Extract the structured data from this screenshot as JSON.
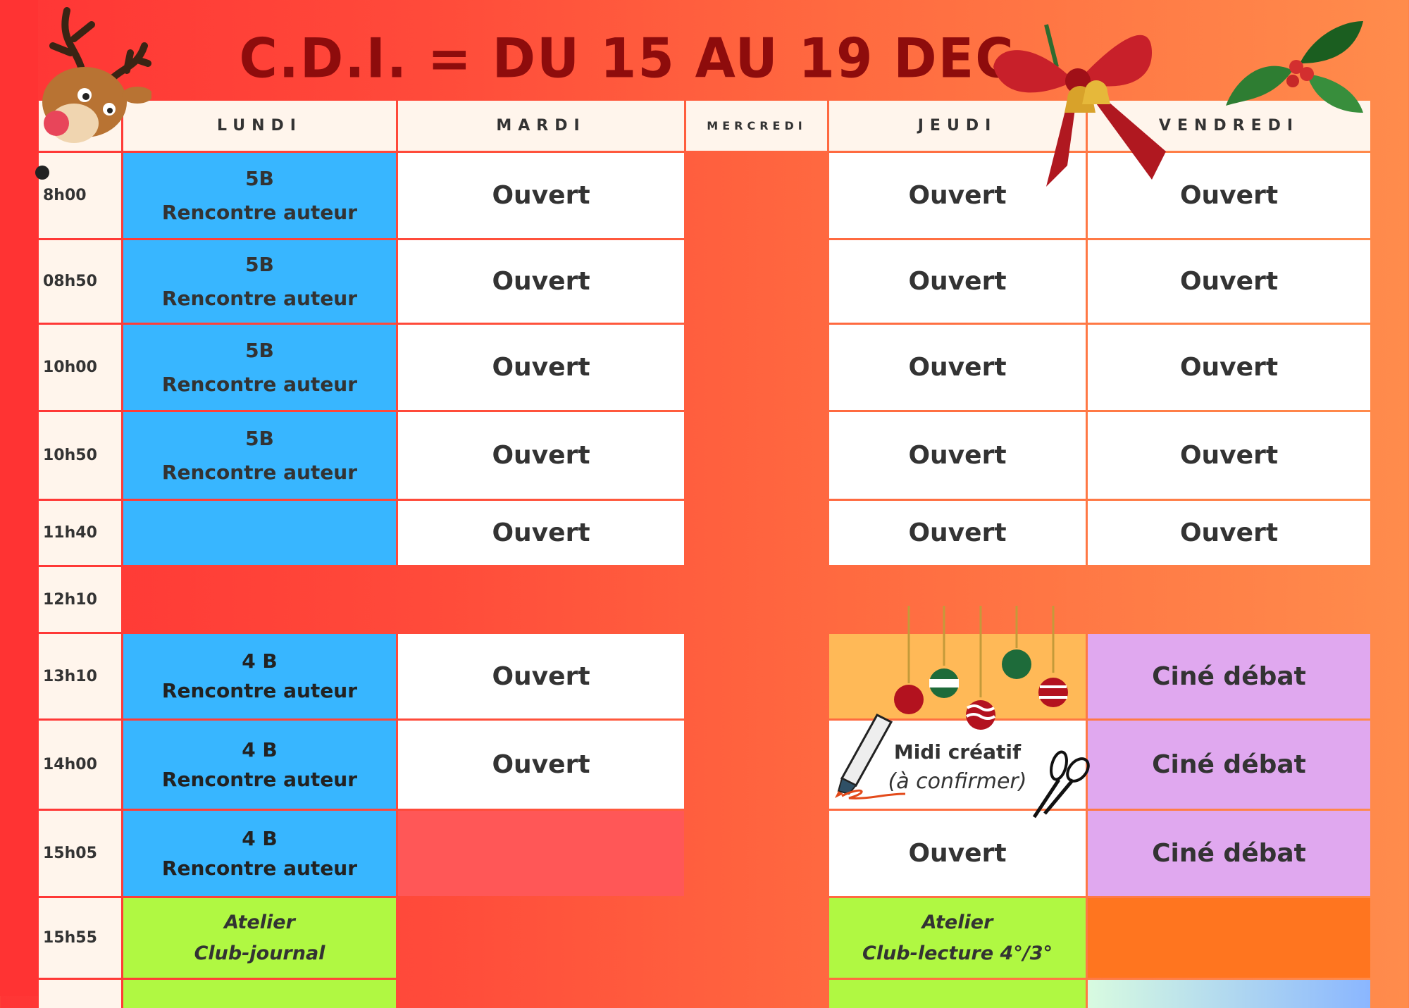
{
  "title": "C.D.I.  =  DU 15 AU 19 DEC",
  "days": [
    "LUNDI",
    "MARDI",
    "MERCREDI",
    "JEUDI",
    "VENDREDI"
  ],
  "rows": [
    {
      "time": "8h00",
      "cells": [
        {
          "t": "blue",
          "l": [
            "5B",
            "Rencontre auteur"
          ],
          "f": "b2"
        },
        {
          "t": "white",
          "l": [
            "Ouvert"
          ],
          "f": "big"
        },
        {
          "t": "none"
        },
        {
          "t": "white",
          "l": [
            "Ouvert"
          ],
          "f": "big"
        },
        {
          "t": "white",
          "l": [
            "Ouvert"
          ],
          "f": "big"
        }
      ]
    },
    {
      "time": "08h50",
      "cells": [
        {
          "t": "blue",
          "l": [
            "5B",
            "Rencontre auteur"
          ],
          "f": "b2"
        },
        {
          "t": "white",
          "l": [
            "Ouvert"
          ],
          "f": "big"
        },
        {
          "t": "none"
        },
        {
          "t": "white",
          "l": [
            "Ouvert"
          ],
          "f": "big"
        },
        {
          "t": "white",
          "l": [
            "Ouvert"
          ],
          "f": "big"
        }
      ]
    },
    {
      "time": "10h00",
      "cells": [
        {
          "t": "blue",
          "l": [
            "5B",
            "Rencontre auteur"
          ],
          "f": "b2"
        },
        {
          "t": "white",
          "l": [
            "Ouvert"
          ],
          "f": "big"
        },
        {
          "t": "none"
        },
        {
          "t": "white",
          "l": [
            "Ouvert"
          ],
          "f": "big"
        },
        {
          "t": "white",
          "l": [
            "Ouvert"
          ],
          "f": "big"
        }
      ]
    },
    {
      "time": "10h50",
      "cells": [
        {
          "t": "blue",
          "l": [
            "5B",
            "Rencontre auteur"
          ],
          "f": "b2"
        },
        {
          "t": "white",
          "l": [
            "Ouvert"
          ],
          "f": "big"
        },
        {
          "t": "none"
        },
        {
          "t": "white",
          "l": [
            "Ouvert"
          ],
          "f": "big"
        },
        {
          "t": "white",
          "l": [
            "Ouvert"
          ],
          "f": "big"
        }
      ]
    },
    {
      "time": "11h40",
      "cells": [
        {
          "t": "blue"
        },
        {
          "t": "white",
          "l": [
            "Ouvert"
          ],
          "f": "big"
        },
        {
          "t": "none"
        },
        {
          "t": "white",
          "l": [
            "Ouvert"
          ],
          "f": "big"
        },
        {
          "t": "white",
          "l": [
            "Ouvert"
          ],
          "f": "big"
        }
      ]
    },
    {
      "time": "12h10",
      "cells": [
        {
          "t": "none"
        },
        {
          "t": "none"
        },
        {
          "t": "none"
        },
        {
          "t": "none"
        },
        {
          "t": "none"
        }
      ]
    },
    {
      "time": "13h10",
      "cells": [
        {
          "t": "blue",
          "l": [
            "4 B",
            "Rencontre auteur"
          ],
          "f": "m2"
        },
        {
          "t": "white",
          "l": [
            "Ouvert"
          ],
          "f": "big"
        },
        {
          "t": "none"
        },
        {
          "t": "yellow"
        },
        {
          "t": "lilac",
          "l": [
            "Ciné débat"
          ],
          "f": "big"
        }
      ]
    },
    {
      "time": "14h00",
      "cells": [
        {
          "t": "blue",
          "l": [
            "4 B",
            "Rencontre auteur"
          ],
          "f": "m2"
        },
        {
          "t": "white",
          "l": [
            "Ouvert"
          ],
          "f": "big"
        },
        {
          "t": "none"
        },
        {
          "t": "white",
          "l": [
            "Midi créatif",
            "(à confirmer)"
          ],
          "f": "midi"
        },
        {
          "t": "lilac",
          "l": [
            "Ciné débat"
          ],
          "f": "big"
        }
      ]
    },
    {
      "time": "15h05",
      "cells": [
        {
          "t": "blue",
          "l": [
            "4 B",
            "Rencontre auteur"
          ],
          "f": "m2"
        },
        {
          "t": "pink"
        },
        {
          "t": "none"
        },
        {
          "t": "white",
          "l": [
            "Ouvert"
          ],
          "f": "big"
        },
        {
          "t": "lilac",
          "l": [
            "Ciné débat"
          ],
          "f": "big"
        }
      ]
    },
    {
      "time": "15h55",
      "cells": [
        {
          "t": "green",
          "l": [
            "Atelier",
            "Club-journal"
          ],
          "f": "it"
        },
        {
          "t": "none"
        },
        {
          "t": "none"
        },
        {
          "t": "green",
          "l": [
            "Atelier",
            "Club-lecture 4°/3°"
          ],
          "f": "it"
        },
        {
          "t": "orange"
        }
      ]
    },
    {
      "time": "",
      "cells": [
        {
          "t": "green"
        },
        {
          "t": "none"
        },
        {
          "t": "none"
        },
        {
          "t": "green"
        },
        {
          "t": "grad"
        }
      ]
    }
  ],
  "decorations": [
    "reindeer-icon",
    "bow-with-bells-icon",
    "holly-icon",
    "christmas-ornaments-icon",
    "marker-pen-icon",
    "scissors-icon"
  ]
}
